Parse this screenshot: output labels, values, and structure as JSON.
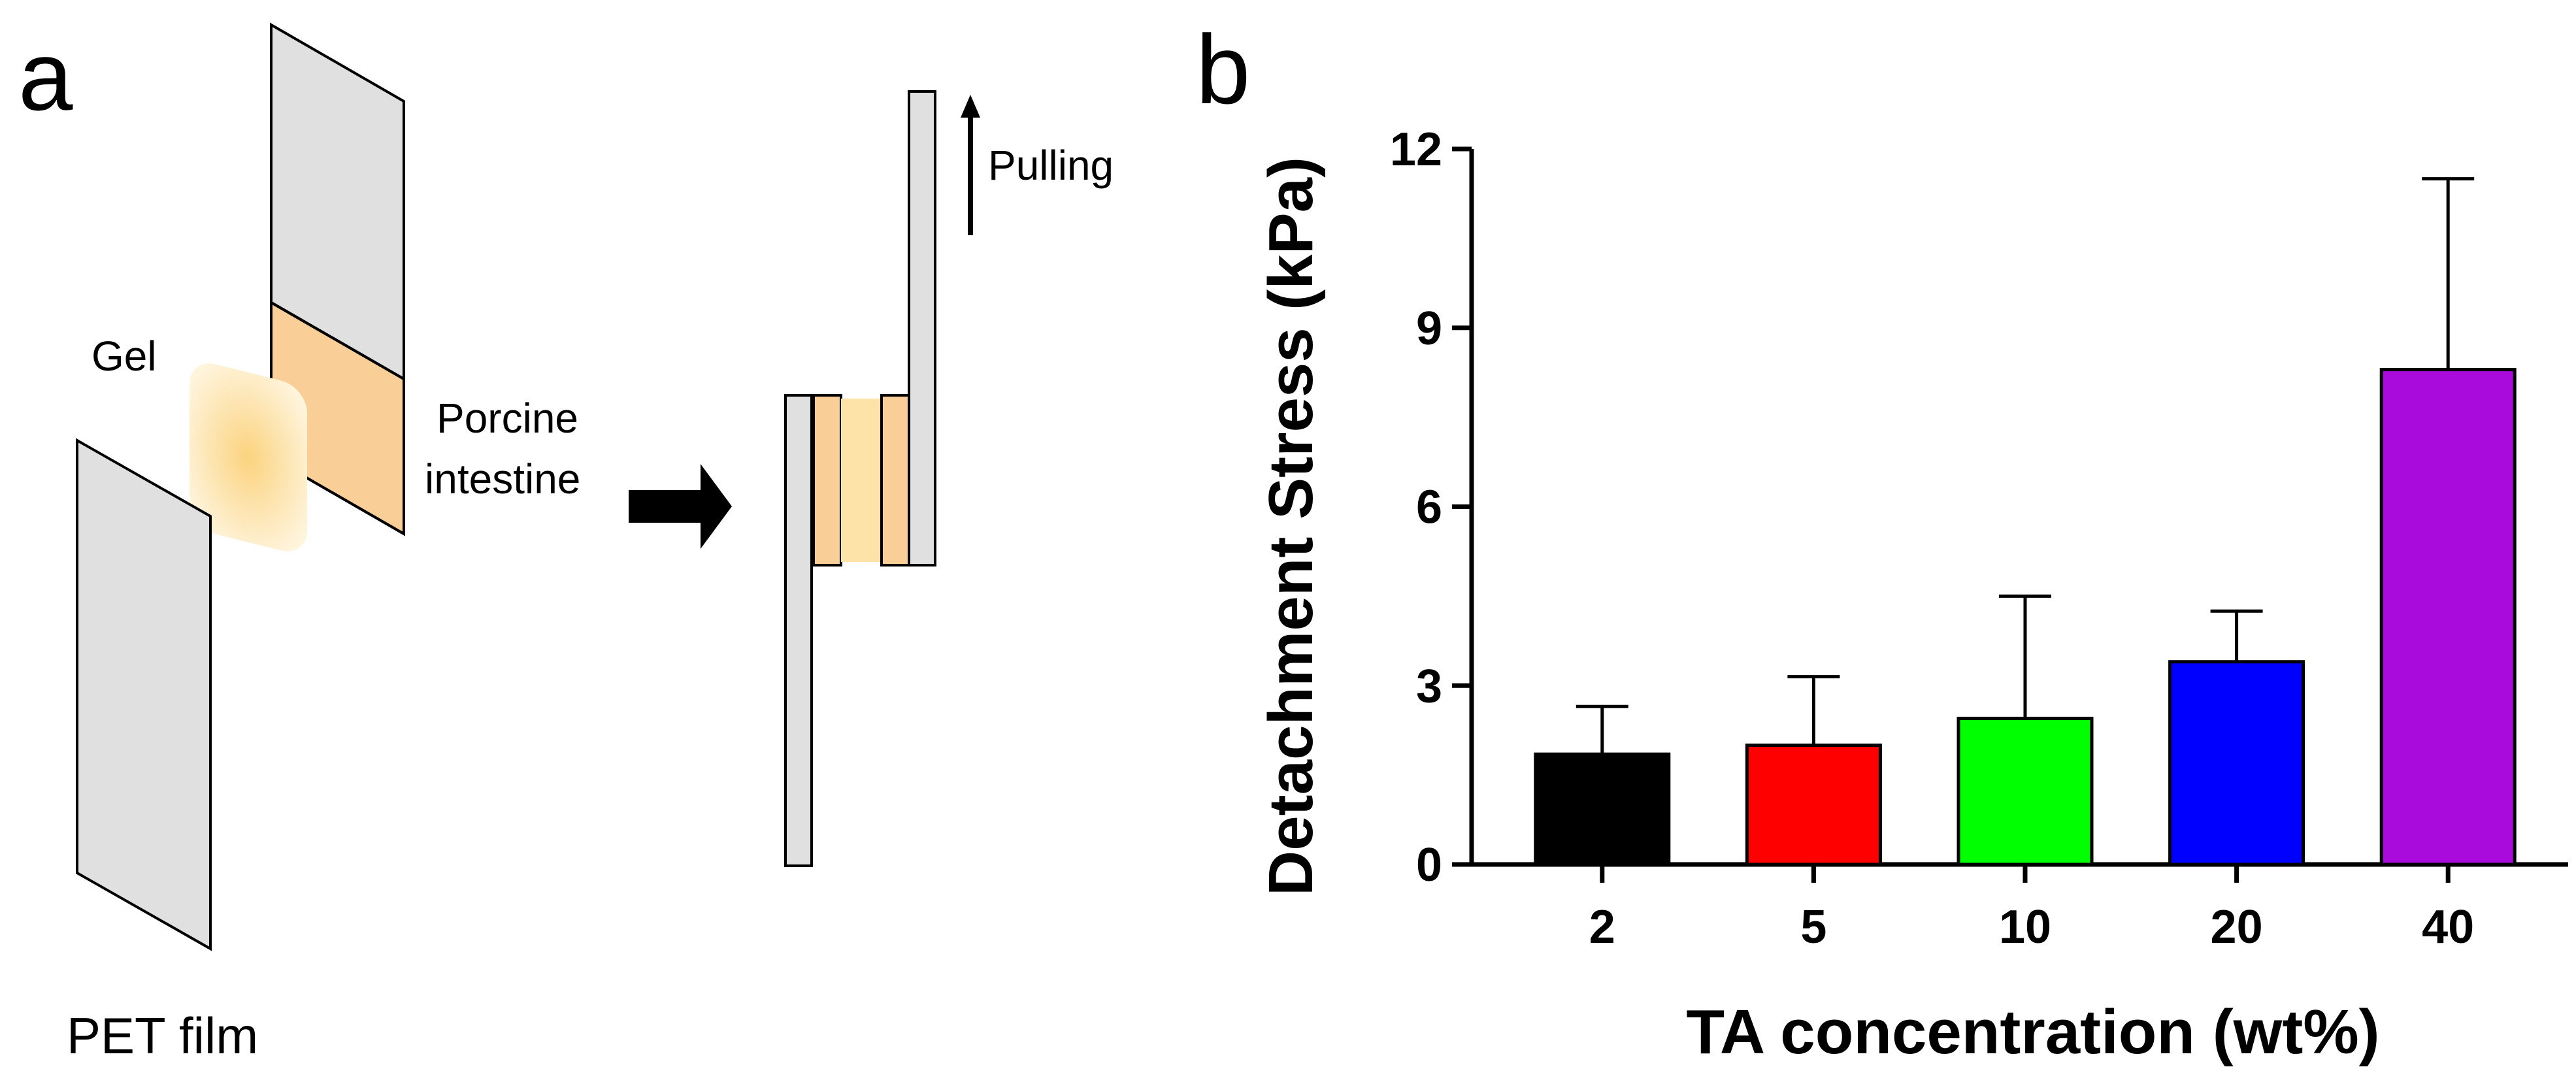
{
  "panel_a": {
    "label": "a",
    "gel_label": "Gel",
    "intestine_label_line1": "Porcine",
    "intestine_label_line2": "intestine",
    "film_label": "PET film",
    "pulling_label": "Pulling"
  },
  "panel_b": {
    "label": "b"
  },
  "colors": {
    "film_fill": "#e0e0e0",
    "tissue_fill": "#f9cf97",
    "gel_fill": "#fde3a7",
    "bars": [
      "#000000",
      "#ff0000",
      "#00ff00",
      "#0000ff",
      "#a80bdc"
    ]
  },
  "chart_data": {
    "type": "bar",
    "title": "",
    "xlabel": "TA concentration (wt%)",
    "ylabel": "Detachment Stress (kPa)",
    "categories": [
      "2",
      "5",
      "10",
      "20",
      "40"
    ],
    "values": [
      1.85,
      2.0,
      2.45,
      3.4,
      8.3
    ],
    "error_upper": [
      0.8,
      1.15,
      2.05,
      0.85,
      3.2
    ],
    "ylim": [
      0,
      12
    ],
    "yticks": [
      0,
      3,
      6,
      9,
      12
    ]
  }
}
